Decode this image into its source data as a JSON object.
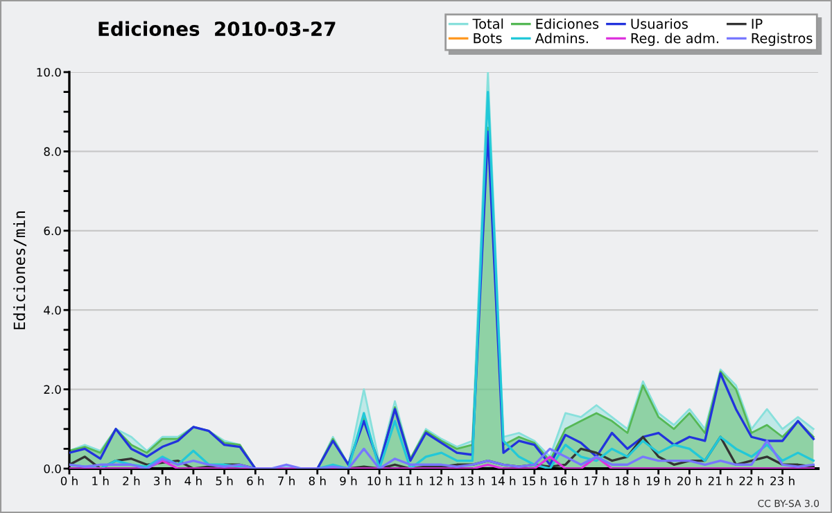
{
  "chart_data": {
    "type": "line",
    "title": "Ediciones  2010-03-27",
    "ylabel": "Ediciones/min",
    "annotations": [
      "CC BY-SA 3.0"
    ],
    "x": [
      0,
      0.5,
      1,
      1.5,
      2,
      2.5,
      3,
      3.5,
      4,
      4.5,
      5,
      5.5,
      6,
      6.5,
      7,
      7.5,
      8,
      8.5,
      9,
      9.5,
      10,
      10.5,
      11,
      11.5,
      12,
      12.5,
      13,
      13.5,
      14,
      14.5,
      15,
      15.5,
      16,
      16.5,
      17,
      17.5,
      18,
      18.5,
      19,
      19.5,
      20,
      20.5,
      21,
      21.5,
      22,
      22.5,
      23,
      23.5,
      24
    ],
    "series": [
      {
        "name": "Total",
        "type": "area",
        "color": "#88e0dc",
        "values": [
          0.45,
          0.6,
          0.45,
          1.0,
          0.8,
          0.45,
          0.8,
          0.8,
          1.05,
          0.95,
          0.7,
          0.6,
          0,
          0,
          0.05,
          0,
          0,
          0.8,
          0.1,
          2.0,
          0.15,
          1.7,
          0.25,
          1.0,
          0.75,
          0.55,
          0.7,
          10.0,
          0.8,
          0.9,
          0.7,
          0.3,
          1.4,
          1.3,
          1.6,
          1.3,
          1.0,
          2.2,
          1.4,
          1.1,
          1.5,
          1.0,
          2.5,
          2.1,
          1.0,
          1.5,
          1.0,
          1.3,
          1.0
        ]
      },
      {
        "name": "Ediciones",
        "type": "area",
        "color": "#55b855",
        "values": [
          0.45,
          0.55,
          0.4,
          1.0,
          0.6,
          0.4,
          0.75,
          0.75,
          1.05,
          0.95,
          0.65,
          0.6,
          0,
          0,
          0,
          0,
          0,
          0.75,
          0.1,
          1.3,
          0.1,
          1.55,
          0.25,
          0.95,
          0.7,
          0.5,
          0.6,
          8.6,
          0.6,
          0.8,
          0.65,
          0.2,
          1.0,
          1.2,
          1.4,
          1.2,
          0.9,
          2.1,
          1.3,
          1.0,
          1.4,
          0.9,
          2.45,
          2.0,
          0.9,
          1.1,
          0.8,
          1.2,
          0.8
        ]
      },
      {
        "name": "Usuarios",
        "color": "#2233dd",
        "values": [
          0.4,
          0.5,
          0.25,
          1.0,
          0.5,
          0.3,
          0.55,
          0.7,
          1.05,
          0.95,
          0.6,
          0.55,
          0,
          0,
          0,
          0,
          0,
          0.7,
          0.1,
          1.2,
          0.1,
          1.5,
          0.2,
          0.9,
          0.65,
          0.4,
          0.35,
          8.5,
          0.4,
          0.7,
          0.6,
          0.1,
          0.85,
          0.65,
          0.3,
          0.9,
          0.5,
          0.8,
          0.9,
          0.6,
          0.8,
          0.7,
          2.4,
          1.5,
          0.8,
          0.7,
          0.7,
          1.2,
          0.75
        ]
      },
      {
        "name": "IP",
        "color": "#333333",
        "values": [
          0.1,
          0.3,
          0,
          0.2,
          0.25,
          0.1,
          0.15,
          0.2,
          0,
          0.05,
          0.1,
          0.1,
          0,
          0,
          0,
          0,
          0,
          0.05,
          0,
          0.05,
          0,
          0.1,
          0,
          0.05,
          0.05,
          0.1,
          0.1,
          0.2,
          0.1,
          0.05,
          0.1,
          0.05,
          0.1,
          0.5,
          0.4,
          0.2,
          0.3,
          0.8,
          0.3,
          0.1,
          0.2,
          0.2,
          0.8,
          0.1,
          0.2,
          0.3,
          0.1,
          0.1,
          0.05
        ]
      },
      {
        "name": "Bots",
        "color": "#ff9922",
        "values": [
          null,
          null,
          null,
          null,
          null,
          null,
          null,
          null,
          null,
          null,
          null,
          null,
          null,
          null,
          null,
          null,
          null,
          null,
          null,
          null,
          null,
          null,
          null,
          null,
          null,
          null,
          null,
          null,
          null,
          null,
          null,
          null,
          null,
          null,
          null,
          null,
          null,
          null,
          null,
          null,
          null,
          null,
          null,
          null,
          null,
          null,
          null,
          null,
          null
        ]
      },
      {
        "name": "Admins.",
        "color": "#22c8d8",
        "values": [
          0.1,
          0.05,
          0,
          0.2,
          0.1,
          0.05,
          0.3,
          0.1,
          0.45,
          0.1,
          0.1,
          0.05,
          0,
          0,
          0,
          0,
          0,
          0.1,
          0,
          1.4,
          0,
          1.2,
          0,
          0.3,
          0.4,
          0.2,
          0.2,
          9.5,
          0.7,
          0.3,
          0.1,
          0,
          0.6,
          0.3,
          0.2,
          0.5,
          0.3,
          0.7,
          0.4,
          0.6,
          0.5,
          0.2,
          0.8,
          0.5,
          0.3,
          0.6,
          0.2,
          0.4,
          0.2
        ]
      },
      {
        "name": "Reg. de adm.",
        "color": "#dd33dd",
        "values": [
          0,
          0,
          0,
          0,
          0,
          0,
          0.2,
          0,
          0,
          0,
          0,
          0,
          0,
          0,
          0,
          0,
          0,
          0,
          0,
          0,
          0,
          0,
          0,
          0,
          0,
          0,
          0,
          0.1,
          0,
          0,
          0,
          0.3,
          0,
          0,
          0.3,
          0,
          0,
          0,
          0,
          0,
          0,
          0,
          0,
          0,
          0,
          0,
          0,
          0,
          0
        ]
      },
      {
        "name": "Registros",
        "color": "#7777ff",
        "values": [
          0.1,
          0.05,
          0.1,
          0.1,
          0.1,
          0,
          0.25,
          0.1,
          0.2,
          0.1,
          0.05,
          0.1,
          0,
          0,
          0.1,
          0,
          0,
          0.05,
          0,
          0.5,
          0,
          0.25,
          0.1,
          0.1,
          0.1,
          0.05,
          0.1,
          0.2,
          0.1,
          0.05,
          0.1,
          0.5,
          0.3,
          0.1,
          0.3,
          0.1,
          0.1,
          0.3,
          0.2,
          0.2,
          0.2,
          0.1,
          0.2,
          0.1,
          0.1,
          0.7,
          0.1,
          0.05,
          0.1
        ]
      }
    ],
    "xlim": [
      0,
      24.15
    ],
    "xticks": [
      {
        "value": 0,
        "label": "0 h"
      },
      {
        "value": 1,
        "label": "1 h"
      },
      {
        "value": 2,
        "label": "2 h"
      },
      {
        "value": 3,
        "label": "3 h"
      },
      {
        "value": 4,
        "label": "4 h"
      },
      {
        "value": 5,
        "label": "5 h"
      },
      {
        "value": 6,
        "label": "6 h"
      },
      {
        "value": 7,
        "label": "7 h"
      },
      {
        "value": 8,
        "label": "8 h"
      },
      {
        "value": 9,
        "label": "9 h"
      },
      {
        "value": 10,
        "label": "10 h"
      },
      {
        "value": 11,
        "label": "11 h"
      },
      {
        "value": 12,
        "label": "12 h"
      },
      {
        "value": 13,
        "label": "13 h"
      },
      {
        "value": 14,
        "label": "14 h"
      },
      {
        "value": 15,
        "label": "15 h"
      },
      {
        "value": 16,
        "label": "16 h"
      },
      {
        "value": 17,
        "label": "17 h"
      },
      {
        "value": 18,
        "label": "18 h"
      },
      {
        "value": 19,
        "label": "19 h"
      },
      {
        "value": 20,
        "label": "20 h"
      },
      {
        "value": 21,
        "label": "21 h"
      },
      {
        "value": 22,
        "label": "22 h"
      },
      {
        "value": 23,
        "label": "23 h"
      }
    ],
    "ylim": [
      0,
      10
    ],
    "yticks": [
      {
        "value": 0,
        "label": "0.0"
      },
      {
        "value": 0.5,
        "label": null
      },
      {
        "value": 1,
        "label": null
      },
      {
        "value": 1.5,
        "label": null
      },
      {
        "value": 2,
        "label": "2.0"
      },
      {
        "value": 2.5,
        "label": null
      },
      {
        "value": 3,
        "label": null
      },
      {
        "value": 3.5,
        "label": null
      },
      {
        "value": 4,
        "label": "4.0"
      },
      {
        "value": 4.5,
        "label": null
      },
      {
        "value": 5,
        "label": null
      },
      {
        "value": 5.5,
        "label": null
      },
      {
        "value": 6,
        "label": "6.0"
      },
      {
        "value": 6.5,
        "label": null
      },
      {
        "value": 7,
        "label": null
      },
      {
        "value": 7.5,
        "label": null
      },
      {
        "value": 8,
        "label": "8.0"
      },
      {
        "value": 8.5,
        "label": null
      },
      {
        "value": 9,
        "label": null
      },
      {
        "value": 9.5,
        "label": null
      },
      {
        "value": 10,
        "label": "10.0"
      }
    ],
    "grid": "y",
    "legend": "top right",
    "marker": "none",
    "line_style": "solid"
  }
}
